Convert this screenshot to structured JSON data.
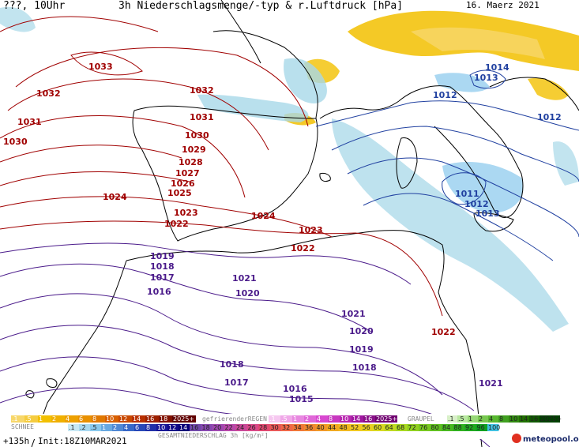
{
  "header": {
    "left": "???, 10Uhr",
    "title": "3h Niederschlagsmenge/-typ & r.Luftdruck [hPa]",
    "date": "16. Maerz 2021"
  },
  "isobars": [
    {
      "v": "1033",
      "c": "red"
    },
    {
      "v": "1032",
      "c": "red"
    },
    {
      "v": "1032",
      "c": "red"
    },
    {
      "v": "1031",
      "c": "red"
    },
    {
      "v": "1031",
      "c": "red"
    },
    {
      "v": "1030",
      "c": "red"
    },
    {
      "v": "1030",
      "c": "red"
    },
    {
      "v": "1029",
      "c": "red"
    },
    {
      "v": "1028",
      "c": "red"
    },
    {
      "v": "1027",
      "c": "red"
    },
    {
      "v": "1026",
      "c": "red"
    },
    {
      "v": "1025",
      "c": "red"
    },
    {
      "v": "1024",
      "c": "red"
    },
    {
      "v": "1024",
      "c": "red"
    },
    {
      "v": "1023",
      "c": "red"
    },
    {
      "v": "1023",
      "c": "red"
    },
    {
      "v": "1022",
      "c": "red"
    },
    {
      "v": "1022",
      "c": "red"
    },
    {
      "v": "1022",
      "c": "red"
    },
    {
      "v": "1019",
      "c": "purple"
    },
    {
      "v": "1018",
      "c": "purple"
    },
    {
      "v": "1017",
      "c": "purple"
    },
    {
      "v": "1016",
      "c": "purple"
    },
    {
      "v": "1021",
      "c": "purple"
    },
    {
      "v": "1020",
      "c": "purple"
    },
    {
      "v": "1021",
      "c": "purple"
    },
    {
      "v": "1020",
      "c": "purple"
    },
    {
      "v": "1019",
      "c": "purple"
    },
    {
      "v": "1018",
      "c": "purple"
    },
    {
      "v": "1018",
      "c": "purple"
    },
    {
      "v": "1017",
      "c": "purple"
    },
    {
      "v": "1016",
      "c": "purple"
    },
    {
      "v": "1015",
      "c": "purple"
    },
    {
      "v": "1021",
      "c": "purple"
    },
    {
      "v": "1014",
      "c": "blue"
    },
    {
      "v": "1013",
      "c": "blue"
    },
    {
      "v": "1012",
      "c": "blue"
    },
    {
      "v": "1012",
      "c": "blue"
    },
    {
      "v": "1011",
      "c": "blue"
    },
    {
      "v": "1012",
      "c": "blue"
    },
    {
      "v": "1013",
      "c": "blue"
    }
  ],
  "legend": {
    "rain_values": [
      ".1",
      ".5",
      "1",
      "2",
      "4",
      "6",
      "8",
      "10",
      "12",
      "14",
      "16",
      "18",
      "2025+"
    ],
    "rain_colors": [
      "#f7d76a",
      "#f5cc40",
      "#f2c000",
      "#f0b000",
      "#eda000",
      "#e89000",
      "#e07800",
      "#d86000",
      "#c84800",
      "#b83000",
      "#9c2000",
      "#801000",
      "#600000"
    ],
    "freezing_label": "gefrierenderREGEN",
    "freezing_values": [
      ".1",
      ".5",
      "1",
      "2",
      "4",
      "8",
      "10",
      "14",
      "16",
      "2025+"
    ],
    "freezing_colors": [
      "#f6c8f0",
      "#f0a8e8",
      "#e888e0",
      "#e068d8",
      "#d848d0",
      "#c838c0",
      "#b828b0",
      "#a018a0",
      "#881088",
      "#700070"
    ],
    "graupel_label": "GRAUPEL",
    "graupel_values": [
      ".1",
      ".5",
      "1",
      "2",
      "4",
      "8",
      "10",
      "14",
      "16",
      "2025+"
    ],
    "graupel_colors": [
      "#d8f0c8",
      "#b8e8a0",
      "#98d878",
      "#78c850",
      "#58b830",
      "#40a020",
      "#308810",
      "#207000",
      "#105800",
      "#004000"
    ],
    "snow_label": "SCHNEE",
    "snow_values": [
      ".1",
      ".2",
      ".5",
      "1",
      "2",
      "4",
      "6",
      "8",
      "10",
      "12",
      "14"
    ],
    "snow_colors": [
      "#c8e8f4",
      "#a8d8f0",
      "#88c8ec",
      "#68a8e0",
      "#5088d4",
      "#3868c8",
      "#2848b8",
      "#2030a8",
      "#181898",
      "#100888",
      "#080078"
    ],
    "total_values": [
      "16",
      "18",
      "20",
      "22",
      "24",
      "26",
      "28",
      "30",
      "32",
      "34",
      "36",
      "40",
      "44",
      "48",
      "52",
      "56",
      "60",
      "64",
      "68",
      "72",
      "76",
      "80",
      "84",
      "88",
      "92",
      "96",
      "100"
    ],
    "total_colors": [
      "#7048a8",
      "#8848b0",
      "#a048b0",
      "#b848a8",
      "#c84898",
      "#d84888",
      "#e04870",
      "#e85858",
      "#f06848",
      "#f07838",
      "#f08830",
      "#f09828",
      "#f0a820",
      "#f0b820",
      "#f0c820",
      "#e8d020",
      "#d8d820",
      "#c0d820",
      "#a8d820",
      "#90d020",
      "#78c820",
      "#60c020",
      "#48b820",
      "#30b020",
      "#20a820",
      "#10a020",
      "#40c0e0"
    ],
    "total_label": "GESAMTNIEDERSCHLAG 3h [kg/m²]"
  },
  "footer": {
    "forecast": "+135h",
    "init": "Init:18Z10MAR2021",
    "brand": "meteopool.org"
  },
  "colors": {
    "isobar_high": "#a00000",
    "isobar_mid": "#4a1a8a",
    "isobar_low": "#2040a0",
    "sea": "#ffffff",
    "land_outline": "#000000",
    "snow_light": "#a8d8e8",
    "rain": "#f2c000"
  }
}
